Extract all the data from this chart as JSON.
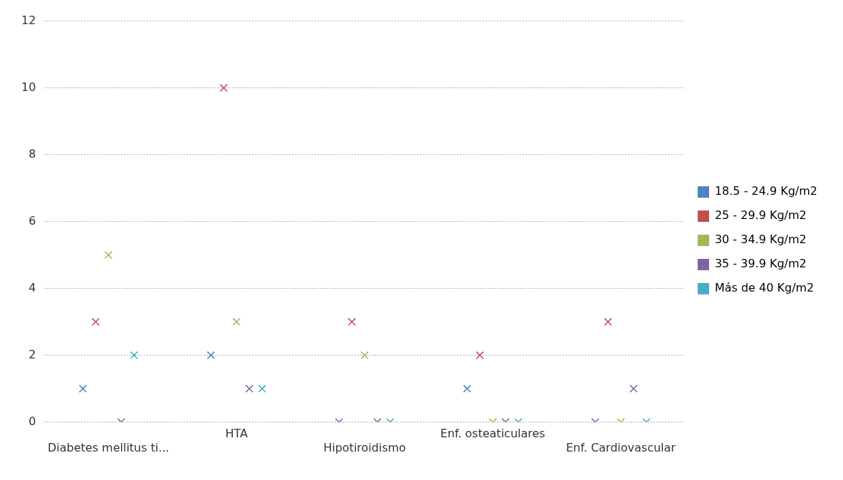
{
  "chart_data": {
    "type": "scatter",
    "categories": [
      "Diabetes mellitus ti...",
      "HTA",
      "Hipotiroidismo",
      "Enf. osteaticulares",
      "Enf. Cardiovascular"
    ],
    "series": [
      {
        "name": "18.5 - 24.9 Kg/m2",
        "color": "#4f81bd",
        "values": [
          1,
          2,
          0,
          1,
          0
        ]
      },
      {
        "name": "25 - 29.9 Kg/m2",
        "color": "#c0504d",
        "values": [
          3,
          10,
          3,
          2,
          3
        ]
      },
      {
        "name": "30 - 34.9 Kg/m2",
        "color": "#9bbb59",
        "values": [
          5,
          3,
          2,
          0,
          0
        ]
      },
      {
        "name": "35 - 39.9 Kg/m2",
        "color": "#8064a2",
        "values": [
          0,
          1,
          0,
          0,
          1
        ]
      },
      {
        "name": "Más de 40 Kg/m2",
        "color": "#4bacc6",
        "values": [
          2,
          1,
          0,
          0,
          0
        ]
      }
    ],
    "ylim": [
      0,
      12
    ],
    "yticks": [
      0,
      2,
      4,
      6,
      8,
      10,
      12
    ],
    "grid": "y",
    "legend": "right",
    "marker": "cross"
  }
}
